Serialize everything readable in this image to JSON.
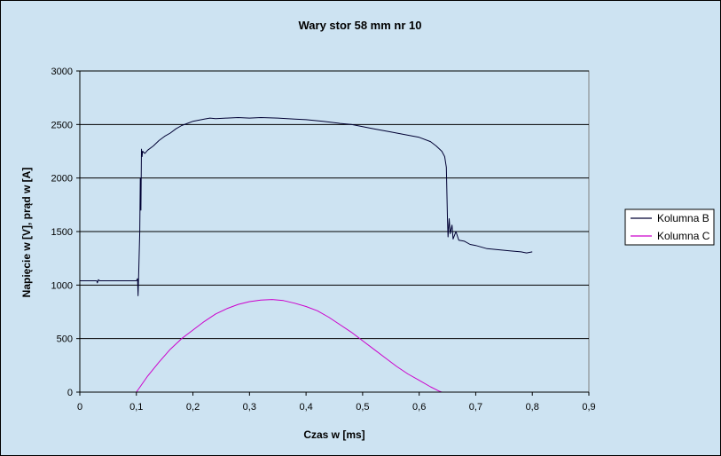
{
  "chart_data": {
    "type": "line",
    "title": "Wary stor 58 mm nr 10",
    "xlabel": "Czas w [ms]",
    "ylabel": "Napięcie w [V], prąd w [A]",
    "xlim": [
      0,
      0.9
    ],
    "ylim": [
      0,
      3000
    ],
    "x_ticks": [
      0,
      0.1,
      0.2,
      0.3,
      0.4,
      0.5,
      0.6,
      0.7,
      0.8,
      0.9
    ],
    "x_tick_labels": [
      "0",
      "0,1",
      "0,2",
      "0,3",
      "0,4",
      "0,5",
      "0,6",
      "0,7",
      "0,8",
      "0,9"
    ],
    "y_ticks": [
      0,
      500,
      1000,
      1500,
      2000,
      2500,
      3000
    ],
    "y_tick_labels": [
      "0",
      "500",
      "1000",
      "1500",
      "2000",
      "2500",
      "3000"
    ],
    "grid": "horizontal",
    "legend_position": "right",
    "series": [
      {
        "name": "Kolumna B",
        "color": "#000033",
        "x": [
          0.0,
          0.03,
          0.031,
          0.033,
          0.035,
          0.1,
          0.102,
          0.103,
          0.104,
          0.106,
          0.107,
          0.108,
          0.109,
          0.11,
          0.111,
          0.115,
          0.12,
          0.13,
          0.14,
          0.15,
          0.16,
          0.17,
          0.18,
          0.19,
          0.2,
          0.21,
          0.22,
          0.23,
          0.24,
          0.26,
          0.28,
          0.3,
          0.32,
          0.35,
          0.38,
          0.4,
          0.43,
          0.46,
          0.48,
          0.5,
          0.52,
          0.55,
          0.58,
          0.6,
          0.62,
          0.63,
          0.64,
          0.645,
          0.648,
          0.65,
          0.651,
          0.653,
          0.655,
          0.658,
          0.66,
          0.665,
          0.67,
          0.68,
          0.69,
          0.7,
          0.72,
          0.74,
          0.76,
          0.78,
          0.79,
          0.8
        ],
        "y": [
          1040,
          1040,
          1020,
          1050,
          1040,
          1040,
          1060,
          900,
          1080,
          1500,
          2000,
          1700,
          2270,
          2200,
          2250,
          2230,
          2260,
          2300,
          2350,
          2390,
          2420,
          2460,
          2490,
          2510,
          2530,
          2540,
          2550,
          2560,
          2555,
          2560,
          2565,
          2560,
          2565,
          2560,
          2550,
          2545,
          2530,
          2510,
          2500,
          2480,
          2460,
          2430,
          2400,
          2380,
          2340,
          2300,
          2250,
          2200,
          2100,
          1600,
          1450,
          1620,
          1480,
          1560,
          1430,
          1500,
          1420,
          1410,
          1380,
          1370,
          1340,
          1330,
          1320,
          1310,
          1300,
          1310
        ]
      },
      {
        "name": "Kolumna C",
        "color": "#cc00cc",
        "x": [
          0.0,
          0.1,
          0.12,
          0.14,
          0.16,
          0.18,
          0.2,
          0.22,
          0.24,
          0.26,
          0.28,
          0.3,
          0.32,
          0.34,
          0.36,
          0.38,
          0.4,
          0.42,
          0.44,
          0.46,
          0.48,
          0.5,
          0.52,
          0.54,
          0.56,
          0.58,
          0.6,
          0.62,
          0.635,
          0.64,
          0.66,
          0.7,
          0.75,
          0.8
        ],
        "y": [
          0,
          0,
          150,
          280,
          400,
          500,
          580,
          660,
          730,
          780,
          820,
          845,
          860,
          865,
          855,
          830,
          800,
          760,
          700,
          630,
          560,
          480,
          400,
          320,
          240,
          170,
          110,
          50,
          10,
          0,
          0,
          0,
          0,
          0
        ]
      }
    ]
  }
}
